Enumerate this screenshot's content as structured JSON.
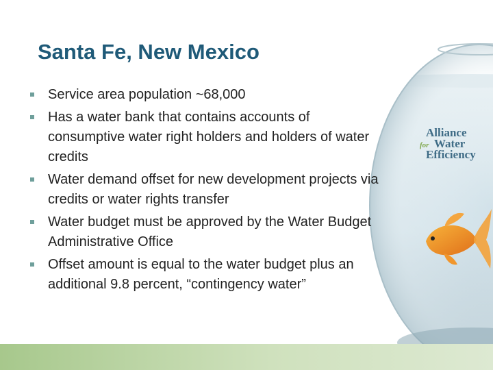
{
  "slide": {
    "title": "Santa Fe, New Mexico",
    "bullets": [
      "Service area population ~68,000",
      "Has a water bank that contains accounts of consumptive water right holders and holders of water credits",
      "Water demand offset for new development projects via credits or water rights transfer",
      "Water budget must be approved by the Water Budget Administrative Office",
      "Offset amount is equal to the water budget plus an additional 9.8 percent, “contingency water”"
    ]
  },
  "logo": {
    "line1": "Alliance",
    "for": "for",
    "line2": "Water",
    "line3": "Efficiency"
  },
  "colors": {
    "title": "#1f5a78",
    "bullet_marker": "#6f9f9b",
    "footer": "#a7c88c"
  }
}
